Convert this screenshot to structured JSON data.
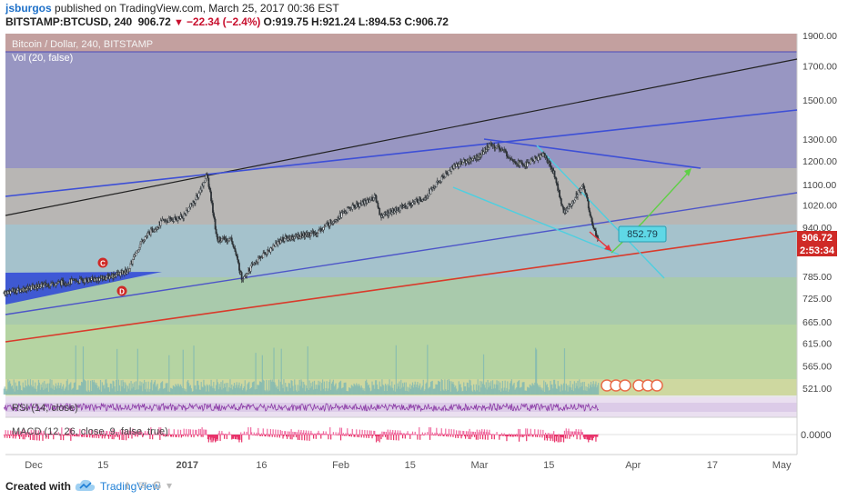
{
  "header": {
    "user": "jsburgos",
    "published_text": "published on TradingView.com, March 25, 2017 00:36 EST",
    "symbol": "BITSTAMP:BTCUSD, 240",
    "last": "906.72",
    "change": "−22.34 (−2.4%)",
    "open_label": "O:",
    "open": "919.75",
    "high_label": "H:",
    "high": "921.24",
    "low_label": "L:",
    "low": "894.53",
    "close_label": "C:",
    "close": "906.72"
  },
  "pane_labels": {
    "main_title": "Bitcoin / Dollar, 240, BITSTAMP",
    "volume": "Vol (20, false)",
    "rsi": "RSI (14, close)",
    "macd": "MACD (12, 26, close, 9, false, true)"
  },
  "annotations": {
    "marker_c": "C",
    "marker_d": "D",
    "price_callout": "852.79",
    "last_price_badge": "906.72",
    "countdown_badge": "2:53:34"
  },
  "footer": {
    "created_with": "Created with",
    "brand": "TradingView"
  },
  "colors": {
    "up_candle": "#2f3438",
    "trend_black": "#222222",
    "trend_blue": "#3d4fd6",
    "trend_red": "#d93a2b",
    "trend_cyan": "#4ecfe0",
    "arrow_green": "#5fd046",
    "arrow_red": "#e8333a",
    "badge_red": "#cf2a27",
    "callout_cyan": "#5fd8e6"
  },
  "chart_data": {
    "type": "candlestick",
    "title": "Bitcoin / Dollar, 240, BITSTAMP",
    "price_axis": {
      "scale": "log",
      "ticks": [
        1900.0,
        1700.0,
        1500.0,
        1300.0,
        1200.0,
        1100.0,
        1020.0,
        940.0,
        785.0,
        725.0,
        665.0,
        615.0,
        565.0,
        521.0
      ]
    },
    "time_axis": {
      "ticks": [
        "Dec",
        "15",
        "2017",
        "16",
        "Feb",
        "15",
        "Mar",
        "15",
        "Apr",
        "17",
        "May"
      ]
    },
    "macd_axis": {
      "ticks": [
        0.0
      ]
    },
    "price_path": [
      {
        "date": "2016-11-25",
        "price": 740
      },
      {
        "date": "2016-12-05",
        "price": 765
      },
      {
        "date": "2016-12-15",
        "price": 780
      },
      {
        "date": "2016-12-20",
        "price": 800
      },
      {
        "date": "2016-12-23",
        "price": 900
      },
      {
        "date": "2016-12-27",
        "price": 960
      },
      {
        "date": "2016-12-31",
        "price": 975
      },
      {
        "date": "2017-01-03",
        "price": 1050
      },
      {
        "date": "2017-01-05",
        "price": 1140
      },
      {
        "date": "2017-01-07",
        "price": 900
      },
      {
        "date": "2017-01-10",
        "price": 900
      },
      {
        "date": "2017-01-12",
        "price": 780
      },
      {
        "date": "2017-01-15",
        "price": 830
      },
      {
        "date": "2017-01-20",
        "price": 900
      },
      {
        "date": "2017-01-27",
        "price": 920
      },
      {
        "date": "2017-02-03",
        "price": 1010
      },
      {
        "date": "2017-02-08",
        "price": 1050
      },
      {
        "date": "2017-02-09",
        "price": 980
      },
      {
        "date": "2017-02-12",
        "price": 1000
      },
      {
        "date": "2017-02-18",
        "price": 1050
      },
      {
        "date": "2017-02-24",
        "price": 1180
      },
      {
        "date": "2017-03-01",
        "price": 1220
      },
      {
        "date": "2017-03-03",
        "price": 1270
      },
      {
        "date": "2017-03-05",
        "price": 1260
      },
      {
        "date": "2017-03-08",
        "price": 1200
      },
      {
        "date": "2017-03-10",
        "price": 1180
      },
      {
        "date": "2017-03-14",
        "price": 1230
      },
      {
        "date": "2017-03-16",
        "price": 1150
      },
      {
        "date": "2017-03-18",
        "price": 990
      },
      {
        "date": "2017-03-20",
        "price": 1040
      },
      {
        "date": "2017-03-22",
        "price": 1100
      },
      {
        "date": "2017-03-24",
        "price": 930
      },
      {
        "date": "2017-03-25",
        "price": 906.72
      }
    ]
  }
}
